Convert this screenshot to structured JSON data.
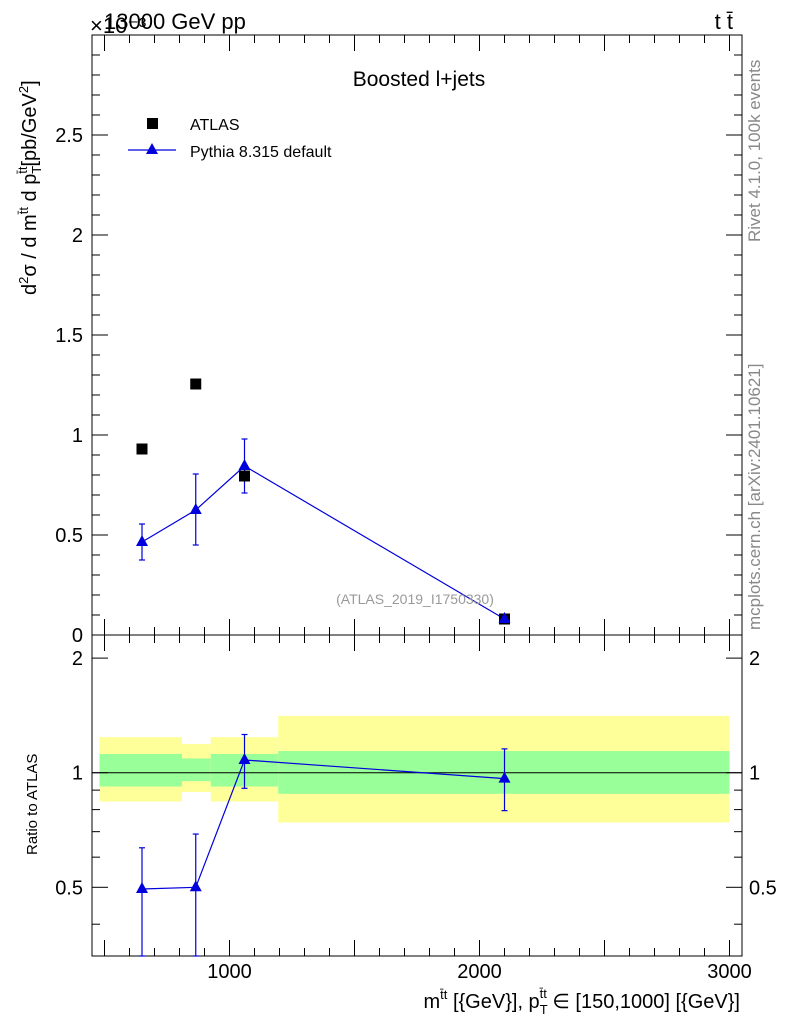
{
  "header": {
    "energy_label": "13000 GeV pp",
    "scale_label": "×10⁻³",
    "process_label": "t t̄"
  },
  "side_labels": {
    "rivet": "Rivet 4.1.0,  100k events",
    "mcplots": "mcplots.cern.ch [arXiv:2401.10621]"
  },
  "chart_data": [
    {
      "type": "scatter",
      "panel": "main",
      "title": "Boosted l+jets",
      "watermark": "(ATLAS_2019_I1750330)",
      "ylabel": "d²σ / d mᵗᵗ̄ d pₜᵗᵗ̄ [pb/GeV²]",
      "ylabel_parts": {
        "a": "d",
        "a_sup": "2",
        "b": "σ  /  d m",
        "b_sup": "t̄t",
        "c": " d p",
        "c_sub": "T",
        "c_sup": "t̄t",
        "d": "[pb/GeV",
        "d_sup": "2",
        "e": "]"
      },
      "ylim": [
        0,
        3.0
      ],
      "ytick_values": [
        0,
        0.5,
        1,
        1.5,
        2,
        2.5
      ],
      "ytick_labels": [
        "0",
        "0.5",
        "1",
        "1.5",
        "2",
        "2.5"
      ],
      "xlim": [
        450,
        3050
      ],
      "legend": {
        "position": "top-left"
      },
      "series": [
        {
          "name": "ATLAS",
          "marker": "square",
          "color": "#000000",
          "x": [
            650,
            865,
            1060,
            2100
          ],
          "y": [
            0.93,
            1.255,
            0.795,
            0.08
          ]
        },
        {
          "name": "Pythia 8.315 default",
          "marker": "triangle",
          "color": "#0000dd",
          "x": [
            650,
            865,
            1060,
            2100
          ],
          "y": [
            0.465,
            0.625,
            0.845,
            0.08
          ],
          "err_low": [
            0.09,
            0.175,
            0.135,
            0.008
          ],
          "err_high": [
            0.09,
            0.18,
            0.135,
            0.008
          ]
        }
      ]
    },
    {
      "type": "scatter",
      "panel": "ratio",
      "ylabel": "Ratio to ATLAS",
      "ylim": [
        0.33,
        2.3
      ],
      "ytick_values": [
        0.5,
        1,
        2
      ],
      "ytick_labels": [
        "0.5",
        "1",
        "2"
      ],
      "xlim": [
        450,
        3050
      ],
      "xtick_values": [
        1000,
        2000,
        3000
      ],
      "xtick_labels": [
        "1000",
        "2000",
        "3000"
      ],
      "xlabel_parts": {
        "a": "m",
        "a_sup": "t̄t",
        "b": " [{GeV}], p",
        "b_sub": "T",
        "b_sup": "t̄t",
        "c": " ∈ [150,1000] [{GeV}]"
      },
      "bins": [
        {
          "x0": 480,
          "x1": 810,
          "band_green": [
            0.92,
            1.12
          ],
          "band_yellow": [
            0.84,
            1.24
          ]
        },
        {
          "x0": 810,
          "x1": 925,
          "band_green": [
            0.95,
            1.09
          ],
          "band_yellow": [
            0.89,
            1.19
          ]
        },
        {
          "x0": 925,
          "x1": 1195,
          "band_green": [
            0.92,
            1.12
          ],
          "band_yellow": [
            0.84,
            1.24
          ]
        },
        {
          "x0": 1195,
          "x1": 3000,
          "band_green": [
            0.88,
            1.14
          ],
          "band_yellow": [
            0.74,
            1.41
          ]
        }
      ],
      "series": [
        {
          "name": "Pythia 8.315 default",
          "marker": "triangle",
          "color": "#0000dd",
          "x": [
            650,
            865,
            1060,
            2100
          ],
          "y": [
            0.495,
            0.5,
            1.08,
            0.965
          ],
          "err_low": [
            0.165,
            0.19,
            0.17,
            0.17
          ],
          "err_high": [
            0.14,
            0.19,
            0.18,
            0.19
          ]
        }
      ]
    }
  ]
}
